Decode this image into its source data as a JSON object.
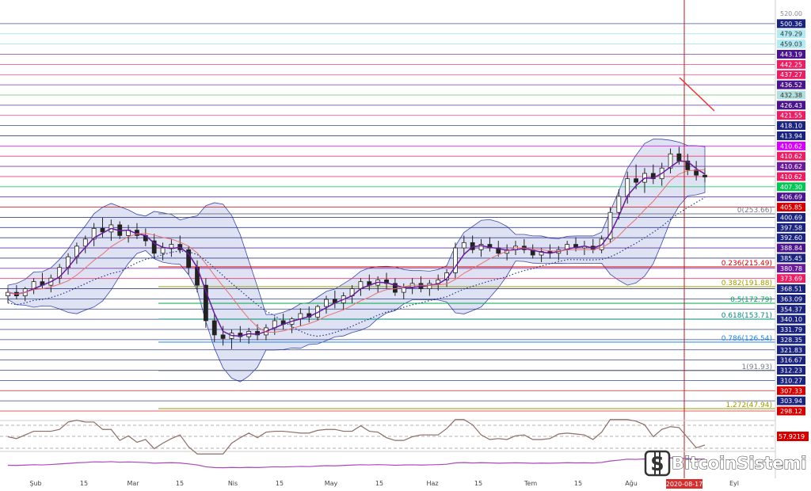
{
  "chart_data": {
    "type": "candlestick",
    "price_axis": {
      "min": 294,
      "max": 526
    },
    "price_levels": [
      {
        "label": "520.00",
        "value": 520.0,
        "bg": "",
        "color": "#888888",
        "line": ""
      },
      {
        "label": "500.36",
        "value": 500.36,
        "bg": "#1a237e",
        "color": "#ffffff",
        "line": "#283593"
      },
      {
        "label": "479.29",
        "value": 479.29,
        "bg": "#b2ebf2",
        "color": "#333333",
        "line": "#80deea"
      },
      {
        "label": "459.03",
        "value": 459.03,
        "bg": "#b2ebf2",
        "color": "#333333",
        "line": "#80deea"
      },
      {
        "label": "443.19",
        "value": 443.19,
        "bg": "#4a148c",
        "color": "#ffffff",
        "line": "#6a1b9a"
      },
      {
        "label": "442.25",
        "value": 442.25,
        "bg": "#e91e63",
        "color": "#ffffff",
        "line": "#e91e63"
      },
      {
        "label": "437.27",
        "value": 437.27,
        "bg": "#e91e63",
        "color": "#ffffff",
        "line": "#e91e63"
      },
      {
        "label": "436.52",
        "value": 436.52,
        "bg": "#4a148c",
        "color": "#ffffff",
        "line": "#6a1b9a"
      },
      {
        "label": "432.38",
        "value": 432.38,
        "bg": "#b2dfdb",
        "color": "#333333",
        "line": "#4caf50"
      },
      {
        "label": "426.43",
        "value": 426.43,
        "bg": "#4a148c",
        "color": "#ffffff",
        "line": "#4a148c"
      },
      {
        "label": "421.55",
        "value": 421.55,
        "bg": "#e91e63",
        "color": "#ffffff",
        "line": "#e91e63"
      },
      {
        "label": "418.10",
        "value": 418.1,
        "bg": "#1a237e",
        "color": "#ffffff",
        "line": "#1a237e"
      },
      {
        "label": "413.94",
        "value": 413.94,
        "bg": "#1a237e",
        "color": "#ffffff",
        "line": "#1a237e"
      },
      {
        "label": "410.62",
        "value": 410.62,
        "bg": "#d500f9",
        "color": "#ffffff",
        "line": "#d500f9"
      },
      {
        "label": "410.62",
        "value": 410.62,
        "bg": "#e91e63",
        "color": "#ffffff",
        "line": "#e91e63"
      },
      {
        "label": "410.62",
        "value": 410.62,
        "bg": "#6a1b9a",
        "color": "#ffffff",
        "line": "#6a1b9a"
      },
      {
        "label": "410.62",
        "value": 410.62,
        "bg": "#e91e63",
        "color": "#ffffff",
        "line": "#e91e63"
      },
      {
        "label": "407.30",
        "value": 407.3,
        "bg": "#00c853",
        "color": "#ffffff",
        "line": "#00c853"
      },
      {
        "label": "406.69",
        "value": 406.69,
        "bg": "#4a148c",
        "color": "#ffffff",
        "line": "#4a148c"
      },
      {
        "label": "405.85",
        "value": 405.85,
        "bg": "#d50000",
        "color": "#ffffff",
        "line": "#d50000"
      },
      {
        "label": "400.69",
        "value": 400.69,
        "bg": "#1a237e",
        "color": "#ffffff",
        "line": "#1a237e"
      },
      {
        "label": "397.58",
        "value": 397.58,
        "bg": "#1a237e",
        "color": "#ffffff",
        "line": "#1a237e"
      },
      {
        "label": "392.60",
        "value": 392.6,
        "bg": "#1a237e",
        "color": "#ffffff",
        "line": "#1a237e"
      },
      {
        "label": "388.84",
        "value": 388.84,
        "bg": "#4a148c",
        "color": "#ffffff",
        "line": "#4a148c"
      },
      {
        "label": "385.45",
        "value": 385.45,
        "bg": "#1a237e",
        "color": "#ffffff",
        "line": "#1a237e"
      },
      {
        "label": "380.78",
        "value": 380.78,
        "bg": "#6a1b9a",
        "color": "#ffffff",
        "line": "#6a1b9a"
      },
      {
        "label": "373.69",
        "value": 373.69,
        "bg": "#e91e63",
        "color": "#ffffff",
        "line": "#e91e63"
      },
      {
        "label": "368.51",
        "value": 368.51,
        "bg": "#1a237e",
        "color": "#ffffff",
        "line": "#1a237e"
      },
      {
        "label": "363.09",
        "value": 363.09,
        "bg": "#1a237e",
        "color": "#ffffff",
        "line": "#1a237e"
      },
      {
        "label": "354.37",
        "value": 354.37,
        "bg": "#1a237e",
        "color": "#ffffff",
        "line": "#1a237e"
      },
      {
        "label": "340.10",
        "value": 340.1,
        "bg": "#1a237e",
        "color": "#ffffff",
        "line": "#1a237e"
      },
      {
        "label": "331.79",
        "value": 331.79,
        "bg": "#1a237e",
        "color": "#ffffff",
        "line": "#1a237e"
      },
      {
        "label": "328.35",
        "value": 328.35,
        "bg": "#1a237e",
        "color": "#ffffff",
        "line": "#1a237e"
      },
      {
        "label": "321.83",
        "value": 321.83,
        "bg": "#1a237e",
        "color": "#ffffff",
        "line": "#1a237e"
      },
      {
        "label": "316.67",
        "value": 316.67,
        "bg": "#1a237e",
        "color": "#ffffff",
        "line": "#1a237e"
      },
      {
        "label": "312.23",
        "value": 312.23,
        "bg": "#1a237e",
        "color": "#ffffff",
        "line": "#1a237e"
      },
      {
        "label": "310.27",
        "value": 310.27,
        "bg": "#1a237e",
        "color": "#ffffff",
        "line": "#1a237e"
      },
      {
        "label": "307.33",
        "value": 307.33,
        "bg": "#d50000",
        "color": "#ffffff",
        "line": "#d50000"
      },
      {
        "label": "303.94",
        "value": 303.94,
        "bg": "#1a237e",
        "color": "#ffffff",
        "line": "#1a237e"
      },
      {
        "label": "298.12",
        "value": 298.12,
        "bg": "#d50000",
        "color": "#ffffff",
        "line": "#d50000"
      }
    ],
    "fib_levels": [
      {
        "ratio": "0",
        "label": "0(253.66)",
        "value": 397.58,
        "color": "#787b86"
      },
      {
        "ratio": "0.236",
        "label": "0.236(215.49)",
        "value": 385.45,
        "color": "#d50000"
      },
      {
        "ratio": "0.382",
        "label": "0.382(191.88)",
        "value": 373.69,
        "color": "#9c9c00"
      },
      {
        "ratio": "0.5",
        "label": "0.5(172.79)",
        "value": 363.09,
        "color": "#00a651"
      },
      {
        "ratio": "0.618",
        "label": "0.618(153.71)",
        "value": 354.37,
        "color": "#00897b"
      },
      {
        "ratio": "0.786",
        "label": "0.786(126.54)",
        "value": 340.1,
        "color": "#1e88e5"
      },
      {
        "ratio": "1",
        "label": "1(91.93)",
        "value": 321.83,
        "color": "#787b86"
      },
      {
        "ratio": "1.272",
        "label": "1.272(47.94)",
        "value": 303.94,
        "color": "#9c9c00"
      }
    ],
    "date_axis": {
      "ticks": [
        "Şub",
        "15",
        "Mar",
        "15",
        "Nis",
        "15",
        "May",
        "15",
        "Haz",
        "15",
        "Tem",
        "15",
        "Ağu",
        "Eyl"
      ],
      "highlighted": "2020-08-17"
    },
    "rsi": {
      "value_label": "57.9219",
      "levels": [
        70,
        50,
        30
      ]
    },
    "candles": [
      [
        362,
        366,
        358,
        364
      ],
      [
        364,
        368,
        360,
        362
      ],
      [
        362,
        367,
        359,
        366
      ],
      [
        366,
        372,
        363,
        370
      ],
      [
        370,
        375,
        366,
        368
      ],
      [
        368,
        374,
        364,
        372
      ],
      [
        372,
        380,
        369,
        378
      ],
      [
        378,
        386,
        374,
        384
      ],
      [
        384,
        392,
        380,
        390
      ],
      [
        390,
        396,
        386,
        394
      ],
      [
        394,
        403,
        390,
        400
      ],
      [
        400,
        406,
        395,
        398
      ],
      [
        398,
        405,
        393,
        402
      ],
      [
        402,
        404,
        394,
        396
      ],
      [
        396,
        402,
        392,
        399
      ],
      [
        399,
        403,
        394,
        396
      ],
      [
        396,
        400,
        390,
        393
      ],
      [
        393,
        397,
        383,
        386
      ],
      [
        386,
        392,
        382,
        389
      ],
      [
        389,
        394,
        384,
        391
      ],
      [
        391,
        396,
        386,
        388
      ],
      [
        388,
        390,
        374,
        378
      ],
      [
        378,
        382,
        364,
        368
      ],
      [
        368,
        372,
        344,
        348
      ],
      [
        348,
        352,
        336,
        340
      ],
      [
        340,
        345,
        334,
        338
      ],
      [
        338,
        343,
        332,
        341
      ],
      [
        341,
        345,
        336,
        339
      ],
      [
        339,
        344,
        335,
        342
      ],
      [
        342,
        346,
        337,
        340
      ],
      [
        340,
        346,
        337,
        344
      ],
      [
        344,
        350,
        340,
        348
      ],
      [
        348,
        352,
        343,
        346
      ],
      [
        346,
        350,
        341,
        349
      ],
      [
        349,
        355,
        345,
        352
      ],
      [
        352,
        356,
        347,
        350
      ],
      [
        350,
        357,
        348,
        356
      ],
      [
        356,
        362,
        352,
        360
      ],
      [
        360,
        365,
        355,
        358
      ],
      [
        358,
        364,
        354,
        362
      ],
      [
        362,
        368,
        358,
        366
      ],
      [
        366,
        372,
        362,
        370
      ],
      [
        370,
        374,
        365,
        368
      ],
      [
        368,
        373,
        364,
        371
      ],
      [
        371,
        375,
        366,
        369
      ],
      [
        369,
        372,
        362,
        364
      ],
      [
        364,
        369,
        360,
        367
      ],
      [
        367,
        372,
        363,
        369
      ],
      [
        369,
        373,
        364,
        366
      ],
      [
        366,
        371,
        362,
        369
      ],
      [
        369,
        374,
        365,
        371
      ],
      [
        371,
        377,
        367,
        375
      ],
      [
        375,
        392,
        372,
        389
      ],
      [
        389,
        396,
        385,
        392
      ],
      [
        392,
        396,
        386,
        388
      ],
      [
        388,
        394,
        384,
        391
      ],
      [
        391,
        395,
        387,
        389
      ],
      [
        389,
        393,
        384,
        386
      ],
      [
        386,
        391,
        382,
        388
      ],
      [
        388,
        393,
        385,
        390
      ],
      [
        390,
        394,
        386,
        388
      ],
      [
        388,
        391,
        383,
        385
      ],
      [
        385,
        389,
        381,
        387
      ],
      [
        387,
        391,
        383,
        386
      ],
      [
        386,
        390,
        382,
        388
      ],
      [
        388,
        393,
        385,
        391
      ],
      [
        391,
        395,
        387,
        389
      ],
      [
        389,
        393,
        385,
        390
      ],
      [
        390,
        394,
        386,
        388
      ],
      [
        388,
        396,
        386,
        394
      ],
      [
        394,
        412,
        392,
        409
      ],
      [
        409,
        422,
        405,
        418
      ],
      [
        418,
        432,
        414,
        428
      ],
      [
        428,
        436,
        422,
        426
      ],
      [
        426,
        434,
        420,
        431
      ],
      [
        431,
        436,
        425,
        428
      ],
      [
        428,
        437,
        424,
        434
      ],
      [
        434,
        445,
        431,
        442
      ],
      [
        442,
        446,
        436,
        438
      ],
      [
        438,
        442,
        430,
        433
      ],
      [
        433,
        438,
        427,
        430
      ],
      [
        430,
        434,
        426,
        429
      ]
    ]
  }
}
